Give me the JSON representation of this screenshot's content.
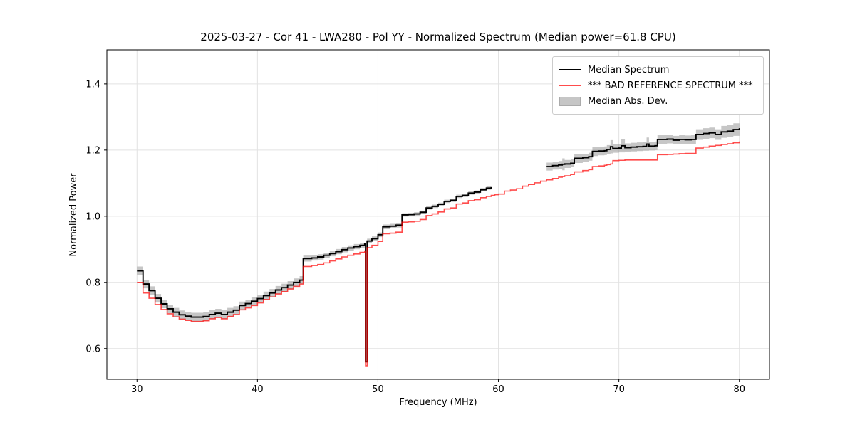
{
  "figure": {
    "title": "2025-03-27 - Cor 41 - LWA280 - Pol YY - Normalized Spectrum (Median power=61.8 CPU)",
    "xlabel": "Frequency (MHz)",
    "ylabel": "Normalized Power"
  },
  "legend": {
    "items": [
      {
        "label": "Median Spectrum",
        "swatch": "line"
      },
      {
        "label": "*** BAD REFERENCE SPECTRUM ***",
        "swatch": "line"
      },
      {
        "label": "Median Abs. Dev.",
        "swatch": "patch"
      }
    ]
  },
  "colors": {
    "median_line": "#000000",
    "reference_line": "rgba(255,0,0,0.7)",
    "band_fill": "rgba(128,128,128,0.45)",
    "band_edge": "#ababab",
    "grid": "#e2e2e2",
    "axes_edge": "#000000",
    "background": "#ffffff"
  },
  "chart_data": {
    "type": "line",
    "title": "2025-03-27 - Cor 41 - LWA280 - Pol YY - Normalized Spectrum (Median power=61.8 CPU)",
    "xlabel": "Frequency (MHz)",
    "ylabel": "Normalized Power",
    "xlim": [
      27.5,
      82.5
    ],
    "ylim": [
      0.507,
      1.503
    ],
    "xtick_values": [
      30,
      40,
      50,
      60,
      70,
      80
    ],
    "xtick_labels": [
      "30",
      "40",
      "50",
      "60",
      "70",
      "80"
    ],
    "ytick_values": [
      0.6,
      0.8,
      1.0,
      1.2,
      1.4
    ],
    "ytick_labels": [
      "0.6",
      "0.8",
      "1.0",
      "1.2",
      "1.4"
    ],
    "grid": true,
    "legend_position": "upper right",
    "step_interpolation": true,
    "x": [
      30,
      30.5,
      31,
      31.5,
      32,
      32.5,
      33,
      33.5,
      34,
      34.5,
      35,
      35.5,
      36,
      36.5,
      37,
      37.5,
      38,
      38.5,
      39,
      39.5,
      40,
      40.5,
      41,
      41.5,
      42,
      42.5,
      43,
      43.5,
      43.8,
      44.5,
      45,
      45.5,
      46,
      46.5,
      47,
      47.5,
      48,
      48.5,
      48.9,
      48.97,
      49.1,
      49.5,
      50,
      50.4,
      51,
      51.5,
      52,
      52.5,
      53,
      53.5,
      54,
      54.5,
      55,
      55.5,
      56,
      56.5,
      57,
      57.5,
      58,
      58.5,
      59,
      59.4,
      59.7,
      60,
      60.5,
      61,
      61.5,
      62,
      62.5,
      63,
      63.5,
      64,
      64.5,
      65,
      65.3,
      65.5,
      66,
      66.3,
      67,
      67.5,
      67.8,
      68.3,
      68.8,
      69,
      69.3,
      69.5,
      70,
      70.2,
      70.5,
      71,
      71.5,
      72,
      72.3,
      72.5,
      73,
      73.2,
      74,
      74.5,
      75,
      75.5,
      76,
      76.4,
      77,
      77.5,
      78,
      78.5,
      79,
      79.5,
      80
    ],
    "series": [
      {
        "name": "Median Spectrum",
        "color": "#000000",
        "linewidth": 1.9,
        "values": [
          0.835,
          0.795,
          0.775,
          0.752,
          0.735,
          0.72,
          0.71,
          0.702,
          0.698,
          0.695,
          0.695,
          0.697,
          0.703,
          0.707,
          0.703,
          0.71,
          0.716,
          0.73,
          0.736,
          0.743,
          0.751,
          0.76,
          0.768,
          0.777,
          0.784,
          0.792,
          0.8,
          0.807,
          0.872,
          0.874,
          0.877,
          0.882,
          0.887,
          0.893,
          0.899,
          0.904,
          0.908,
          0.912,
          0.916,
          0.56,
          0.925,
          0.932,
          0.944,
          0.968,
          0.97,
          0.973,
          1.004,
          1.005,
          1.007,
          1.012,
          1.025,
          1.03,
          1.036,
          1.045,
          1.048,
          1.06,
          1.063,
          1.07,
          1.073,
          1.08,
          1.085,
          1.088,
          null,
          null,
          null,
          null,
          null,
          null,
          null,
          null,
          null,
          1.15,
          1.153,
          1.155,
          1.157,
          1.158,
          1.16,
          1.175,
          1.177,
          1.18,
          1.196,
          1.197,
          1.198,
          1.202,
          1.21,
          1.205,
          1.206,
          1.213,
          1.207,
          1.209,
          1.21,
          1.211,
          1.218,
          1.212,
          1.213,
          1.232,
          1.233,
          1.23,
          1.232,
          1.231,
          1.232,
          1.247,
          1.25,
          1.252,
          1.247,
          1.255,
          1.257,
          1.262,
          1.266
        ]
      },
      {
        "name": "*** BAD REFERENCE SPECTRUM ***",
        "color": "rgba(255,0,0,0.7)",
        "linewidth": 1.6,
        "values": [
          0.8,
          0.768,
          0.752,
          0.733,
          0.718,
          0.705,
          0.696,
          0.689,
          0.685,
          0.682,
          0.682,
          0.684,
          0.69,
          0.694,
          0.69,
          0.697,
          0.703,
          0.717,
          0.723,
          0.73,
          0.738,
          0.748,
          0.756,
          0.765,
          0.772,
          0.78,
          0.788,
          0.795,
          0.848,
          0.851,
          0.854,
          0.859,
          0.865,
          0.871,
          0.877,
          0.882,
          0.886,
          0.891,
          0.895,
          0.548,
          0.905,
          0.912,
          0.924,
          0.947,
          0.949,
          0.952,
          0.982,
          0.983,
          0.985,
          0.99,
          1.002,
          1.007,
          1.013,
          1.022,
          1.025,
          1.037,
          1.04,
          1.047,
          1.05,
          1.056,
          1.06,
          1.063,
          1.065,
          1.067,
          1.076,
          1.079,
          1.083,
          1.091,
          1.096,
          1.101,
          1.106,
          1.11,
          1.114,
          1.118,
          1.12,
          1.122,
          1.126,
          1.134,
          1.138,
          1.141,
          1.15,
          1.152,
          1.154,
          1.156,
          1.158,
          1.168,
          1.169,
          1.169,
          1.17,
          1.17,
          1.17,
          1.17,
          1.17,
          1.17,
          1.17,
          1.186,
          1.187,
          1.188,
          1.189,
          1.19,
          1.19,
          1.206,
          1.209,
          1.212,
          1.214,
          1.217,
          1.219,
          1.222,
          1.226
        ]
      }
    ],
    "band": {
      "name": "Median Abs. Dev.",
      "color": "rgba(128,128,128,0.45)",
      "center_series": 0,
      "halfwidth": [
        0.013,
        0.013,
        0.013,
        0.013,
        0.013,
        0.013,
        0.013,
        0.013,
        0.013,
        0.013,
        0.013,
        0.013,
        0.013,
        0.013,
        0.013,
        0.013,
        0.012,
        0.012,
        0.012,
        0.012,
        0.012,
        0.012,
        0.012,
        0.012,
        0.012,
        0.012,
        0.012,
        0.012,
        0.009,
        0.008,
        0.008,
        0.008,
        0.008,
        0.008,
        0.008,
        0.008,
        0.008,
        0.008,
        0.008,
        null,
        0.007,
        0.007,
        0.007,
        0.007,
        0.007,
        0.007,
        0.005,
        0.005,
        0.005,
        0.005,
        0.005,
        0.005,
        0.005,
        0.005,
        0.005,
        0.005,
        0.005,
        0.005,
        0.005,
        0.005,
        0.005,
        0.005,
        null,
        null,
        null,
        null,
        null,
        null,
        null,
        null,
        null,
        0.012,
        0.012,
        0.012,
        0.018,
        0.012,
        0.012,
        0.014,
        0.012,
        0.012,
        0.014,
        0.013,
        0.013,
        0.013,
        0.02,
        0.013,
        0.013,
        0.02,
        0.013,
        0.013,
        0.013,
        0.013,
        0.02,
        0.013,
        0.013,
        0.013,
        0.013,
        0.013,
        0.013,
        0.013,
        0.013,
        0.016,
        0.016,
        0.016,
        0.016,
        0.018,
        0.018,
        0.019,
        0.02
      ]
    }
  }
}
